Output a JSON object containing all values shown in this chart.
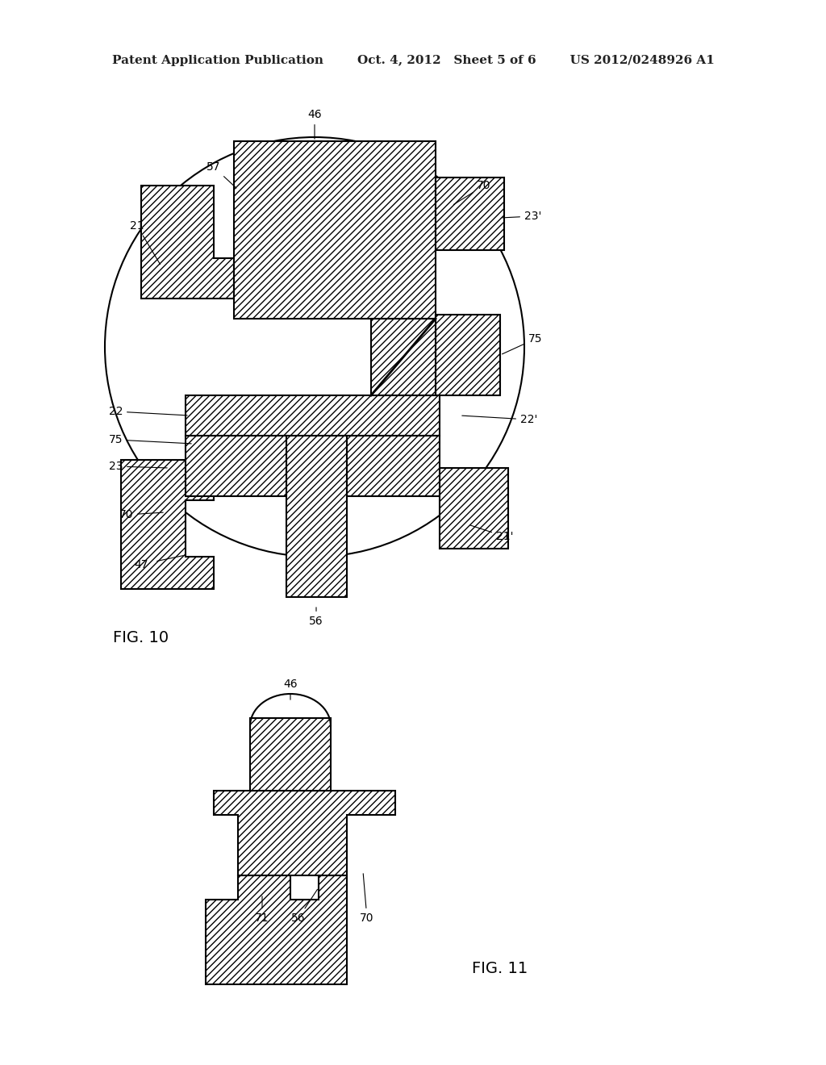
{
  "bg_color": "#ffffff",
  "header_left": "Patent Application Publication",
  "header_mid": "Oct. 4, 2012   Sheet 5 of 6",
  "header_right": "US 2012/0248926 A1",
  "fig10_label": "FIG. 10",
  "fig11_label": "FIG. 11",
  "hatch_pattern": "////",
  "line_color": "#000000",
  "hatch_color": "#555555"
}
